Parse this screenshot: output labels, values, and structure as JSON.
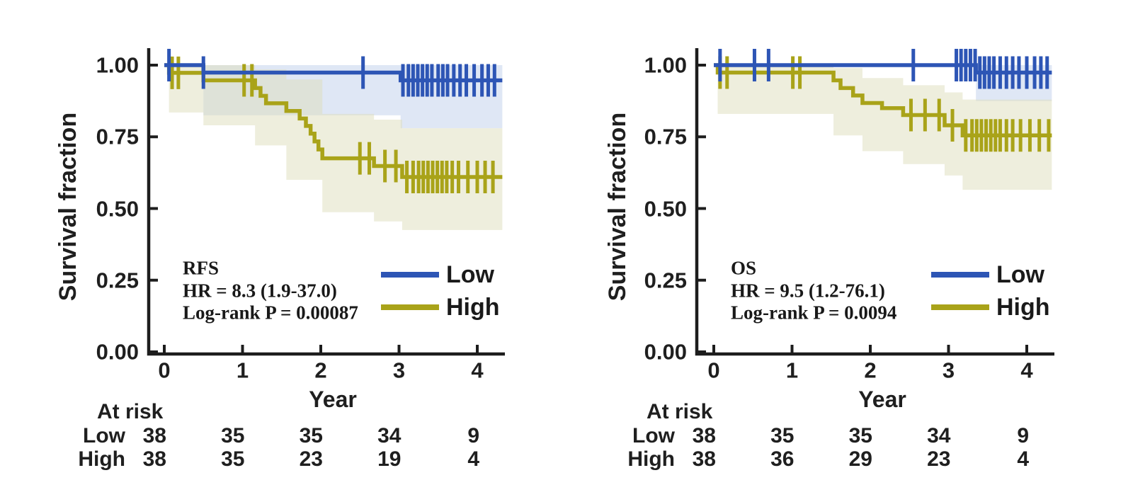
{
  "figure": {
    "background": "#ffffff"
  },
  "colors": {
    "low": "#2d55b5",
    "high": "#a9a319",
    "low_band": "#b9c9e8",
    "high_band": "#dedebc",
    "axis": "#1d1d1d",
    "text": "#1f1f1f"
  },
  "axes": {
    "ylabel": "Survival fraction",
    "xlabel": "Year",
    "y_ticks": [
      "1.00",
      "0.75",
      "0.50",
      "0.25",
      "0.00"
    ],
    "x_ticks": [
      "0",
      "1",
      "2",
      "3",
      "4"
    ]
  },
  "legend": {
    "items": [
      {
        "label": "Low",
        "color_key": "low"
      },
      {
        "label": "High",
        "color_key": "high"
      }
    ]
  },
  "chart_data": [
    {
      "type": "line",
      "subtype": "kaplan-meier",
      "title": "RFS",
      "hr_text": "HR = 8.3 (1.9-37.0)",
      "p_text": "Log-rank P = 0.00087",
      "xlabel": "Year",
      "ylabel": "Survival fraction",
      "xlim": [
        0,
        4.35
      ],
      "ylim": [
        0,
        1
      ],
      "x_tick_values": [
        0,
        1,
        2,
        3,
        4
      ],
      "y_tick_values": [
        1.0,
        0.75,
        0.5,
        0.25,
        0.0
      ],
      "series": [
        {
          "name": "Low",
          "color_key": "low",
          "steps": [
            [
              0,
              1.0
            ],
            [
              0.5,
              0.974
            ],
            [
              3.02,
              0.947
            ]
          ],
          "end": 4.32,
          "censors": [
            0.06,
            0.5,
            2.54,
            3.05,
            3.12,
            3.18,
            3.24,
            3.3,
            3.36,
            3.42,
            3.5,
            3.56,
            3.62,
            3.7,
            3.78,
            3.86,
            3.96,
            4.06,
            4.14,
            4.22
          ],
          "band": {
            "t": [
              0.5,
              3.02,
              4.32
            ],
            "lo": [
              0.825,
              0.78
            ],
            "hi": [
              1.0,
              1.0
            ]
          }
        },
        {
          "name": "High",
          "color_key": "high",
          "steps": [
            [
              0,
              1.0
            ],
            [
              0.06,
              0.973
            ],
            [
              0.5,
              0.947
            ],
            [
              1.16,
              0.92
            ],
            [
              1.23,
              0.893
            ],
            [
              1.3,
              0.867
            ],
            [
              1.56,
              0.84
            ],
            [
              1.73,
              0.814
            ],
            [
              1.81,
              0.788
            ],
            [
              1.87,
              0.761
            ],
            [
              1.92,
              0.734
            ],
            [
              1.97,
              0.706
            ],
            [
              2.02,
              0.675
            ],
            [
              2.68,
              0.648
            ],
            [
              3.04,
              0.61
            ]
          ],
          "end": 4.32,
          "censors": [
            0.1,
            0.18,
            1.02,
            1.12,
            2.5,
            2.62,
            2.82,
            2.96,
            3.1,
            3.18,
            3.25,
            3.31,
            3.37,
            3.43,
            3.49,
            3.55,
            3.61,
            3.68,
            3.76,
            3.88,
            4.0,
            4.1,
            4.2
          ],
          "band": {
            "t": [
              0.06,
              0.5,
              1.16,
              1.56,
              2.02,
              2.68,
              3.04,
              4.32
            ],
            "lo": [
              0.835,
              0.79,
              0.72,
              0.6,
              0.487,
              0.455,
              0.425
            ],
            "hi": [
              1.0,
              1.0,
              0.985,
              0.95,
              0.83,
              0.81,
              0.78
            ]
          }
        }
      ],
      "at_risk": {
        "header": "At risk",
        "years": [
          0,
          1,
          2,
          3,
          4
        ],
        "rows": [
          {
            "label": "Low",
            "counts": [
              38,
              35,
              35,
              34,
              9
            ]
          },
          {
            "label": "High",
            "counts": [
              38,
              35,
              23,
              19,
              4
            ]
          }
        ]
      }
    },
    {
      "type": "line",
      "subtype": "kaplan-meier",
      "title": "OS",
      "hr_text": "HR = 9.5 (1.2-76.1)",
      "p_text": "Log-rank P = 0.0094",
      "xlabel": "Year",
      "ylabel": "Survival fraction",
      "xlim": [
        0,
        4.35
      ],
      "ylim": [
        0,
        1
      ],
      "x_tick_values": [
        0,
        1,
        2,
        3,
        4
      ],
      "y_tick_values": [
        1.0,
        0.75,
        0.5,
        0.25,
        0.0
      ],
      "series": [
        {
          "name": "Low",
          "color_key": "low",
          "steps": [
            [
              0,
              1.0
            ],
            [
              3.35,
              0.974
            ]
          ],
          "end": 4.32,
          "censors": [
            0.08,
            0.52,
            0.7,
            2.55,
            3.1,
            3.16,
            3.22,
            3.28,
            3.34,
            3.4,
            3.46,
            3.52,
            3.58,
            3.66,
            3.74,
            3.82,
            3.9,
            4.0,
            4.1,
            4.18,
            4.26
          ],
          "band": {
            "t": [
              3.35,
              4.32
            ],
            "lo": [
              0.875
            ],
            "hi": [
              1.0
            ]
          }
        },
        {
          "name": "High",
          "color_key": "high",
          "steps": [
            [
              0,
              1.0
            ],
            [
              0.05,
              0.974
            ],
            [
              1.53,
              0.947
            ],
            [
              1.62,
              0.92
            ],
            [
              1.78,
              0.894
            ],
            [
              1.9,
              0.868
            ],
            [
              2.15,
              0.85
            ],
            [
              2.42,
              0.826
            ],
            [
              2.95,
              0.79
            ],
            [
              3.18,
              0.755
            ]
          ],
          "end": 4.32,
          "censors": [
            0.08,
            0.17,
            1.01,
            1.1,
            2.52,
            2.7,
            2.88,
            3.05,
            3.22,
            3.3,
            3.36,
            3.42,
            3.48,
            3.54,
            3.6,
            3.66,
            3.74,
            3.82,
            3.92,
            4.04,
            4.16,
            4.28
          ],
          "band": {
            "t": [
              0.05,
              1.53,
              1.9,
              2.42,
              2.95,
              3.18,
              4.32
            ],
            "lo": [
              0.83,
              0.755,
              0.7,
              0.655,
              0.615,
              0.565
            ],
            "hi": [
              1.0,
              0.99,
              0.955,
              0.93,
              0.905,
              0.88
            ]
          }
        }
      ],
      "at_risk": {
        "header": "At risk",
        "years": [
          0,
          1,
          2,
          3,
          4
        ],
        "rows": [
          {
            "label": "Low",
            "counts": [
              38,
              35,
              35,
              34,
              9
            ]
          },
          {
            "label": "High",
            "counts": [
              38,
              36,
              29,
              23,
              4
            ]
          }
        ]
      }
    }
  ]
}
